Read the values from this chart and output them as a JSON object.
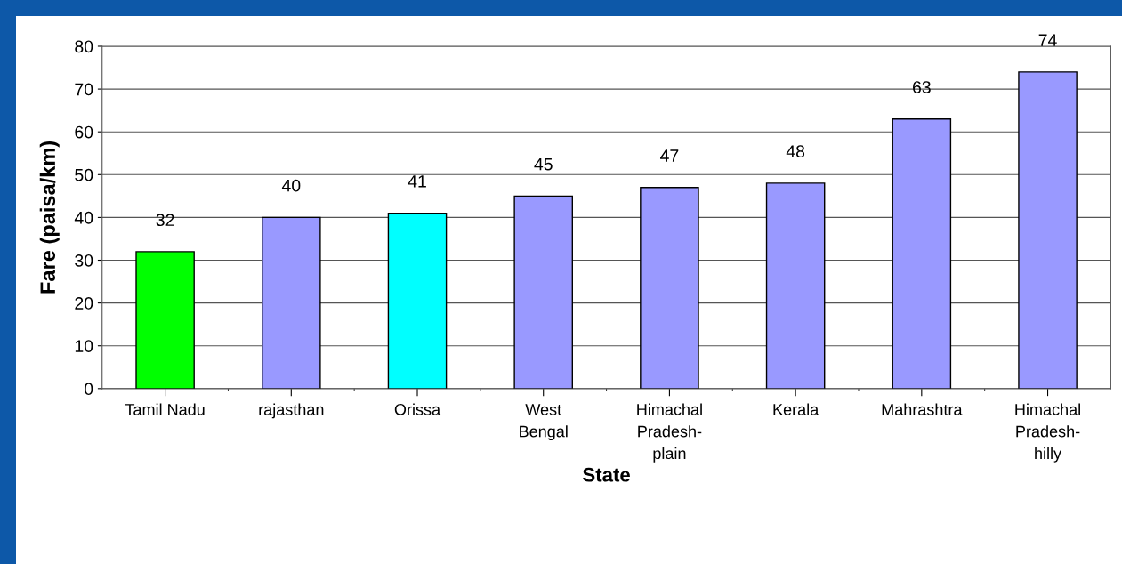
{
  "chart_data": {
    "type": "bar",
    "xlabel": "State",
    "ylabel": "Fare (paisa/km)",
    "categories": [
      "Tamil Nadu",
      "rajasthan",
      "Orissa",
      "West\nBengal",
      "Himachal\nPradesh-\nplain",
      "Kerala",
      "Mahrashtra",
      "Himachal\nPradesh-\nhilly"
    ],
    "values": [
      32,
      40,
      41,
      45,
      47,
      48,
      63,
      74
    ],
    "colors": [
      "#00ff00",
      "#9999ff",
      "#00ffff",
      "#9999ff",
      "#9999ff",
      "#9999ff",
      "#9999ff",
      "#9999ff"
    ],
    "ylim": [
      0,
      80
    ],
    "yticks": [
      0,
      10,
      20,
      30,
      40,
      50,
      60,
      70,
      80
    ],
    "grid": "y",
    "data_labels": true,
    "legend": false
  }
}
